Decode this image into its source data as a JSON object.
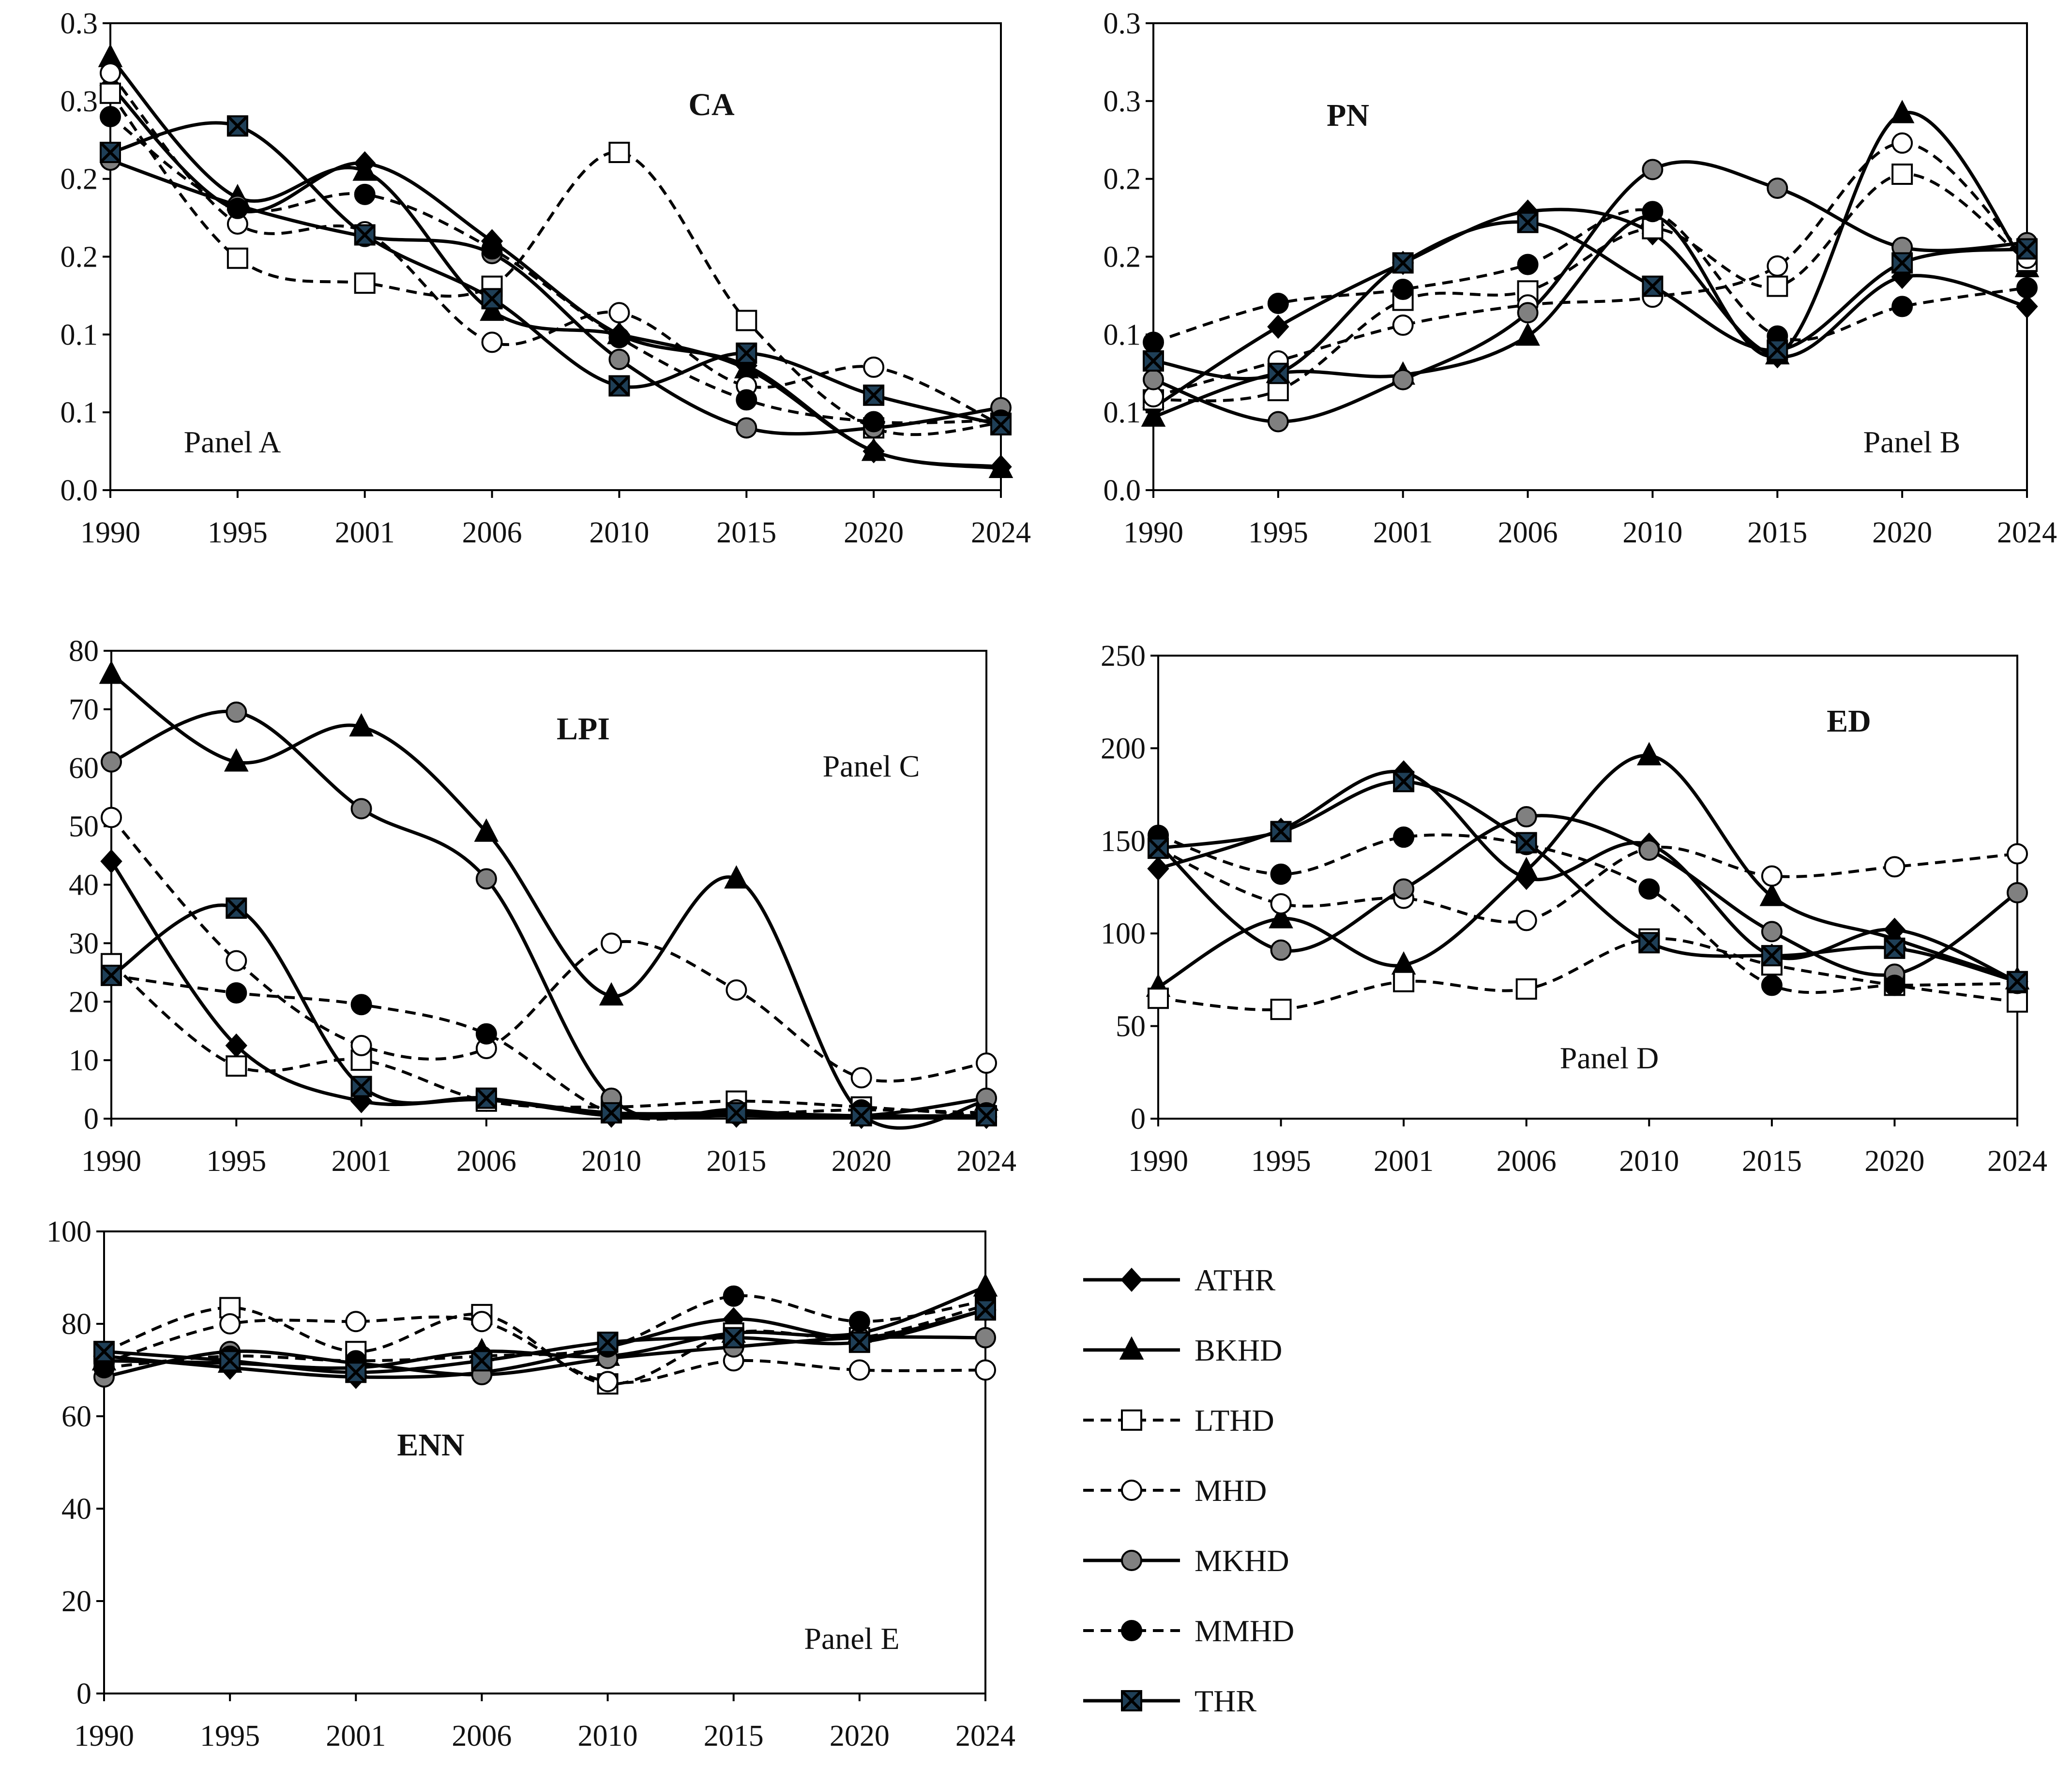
{
  "chart_data": [
    {
      "type": "line",
      "id": "A",
      "title": "CA",
      "panel_label": "Panel A",
      "categories": [
        "1990",
        "1995",
        "2001",
        "2006",
        "2010",
        "2015",
        "2020",
        "2024"
      ],
      "y_ticks": [
        0,
        0.05,
        0.1,
        0.15,
        0.2,
        0.25,
        0.3
      ],
      "y_tick_labels": [
        "0.0",
        "0.1",
        "0.1",
        "0.2",
        "0.2",
        "0.3",
        "0.3"
      ],
      "ylim": [
        0,
        0.3
      ],
      "series": [
        {
          "name": "ATHR",
          "values": [
            0.26,
            0.18,
            0.21,
            0.16,
            0.1,
            0.08,
            0.025,
            0.015
          ]
        },
        {
          "name": "BKHD",
          "values": [
            0.278,
            0.188,
            0.205,
            0.115,
            0.1,
            0.078,
            0.025,
            0.014
          ]
        },
        {
          "name": "LTHD",
          "values": [
            0.255,
            0.149,
            0.133,
            0.131,
            0.217,
            0.109,
            0.04,
            0.043
          ]
        },
        {
          "name": "MHD",
          "values": [
            0.268,
            0.171,
            0.166,
            0.095,
            0.114,
            0.067,
            0.079,
            0.042
          ]
        },
        {
          "name": "MKHD",
          "values": [
            0.212,
            0.183,
            0.163,
            0.152,
            0.084,
            0.04,
            0.04,
            0.053
          ]
        },
        {
          "name": "MMHD",
          "values": [
            0.24,
            0.181,
            0.19,
            0.155,
            0.098,
            0.058,
            0.044,
            0.045
          ]
        },
        {
          "name": "THR",
          "values": [
            0.217,
            0.234,
            0.164,
            0.123,
            0.067,
            0.088,
            0.061,
            0.042
          ]
        }
      ]
    },
    {
      "type": "line",
      "id": "B",
      "title": "PN",
      "panel_label": "Panel B",
      "categories": [
        "1990",
        "1995",
        "2001",
        "2006",
        "2010",
        "2015",
        "2020",
        "2024"
      ],
      "y_ticks": [
        0,
        0.05,
        0.1,
        0.15,
        0.2,
        0.25,
        0.3
      ],
      "y_tick_labels": [
        "0.0",
        "0.1",
        "0.1",
        "0.2",
        "0.2",
        "0.3",
        "0.3"
      ],
      "ylim": [
        0,
        0.3
      ],
      "series": [
        {
          "name": "ATHR",
          "values": [
            0.053,
            0.105,
            0.146,
            0.179,
            0.165,
            0.086,
            0.137,
            0.118
          ]
        },
        {
          "name": "BKHD",
          "values": [
            0.047,
            0.075,
            0.074,
            0.099,
            0.176,
            0.087,
            0.242,
            0.143
          ]
        },
        {
          "name": "LTHD",
          "values": [
            0.058,
            0.064,
            0.122,
            0.128,
            0.168,
            0.131,
            0.203,
            0.147
          ]
        },
        {
          "name": "MHD",
          "values": [
            0.06,
            0.083,
            0.106,
            0.119,
            0.124,
            0.144,
            0.223,
            0.149
          ]
        },
        {
          "name": "MKHD",
          "values": [
            0.071,
            0.044,
            0.071,
            0.114,
            0.206,
            0.194,
            0.156,
            0.159
          ]
        },
        {
          "name": "MMHD",
          "values": [
            0.095,
            0.12,
            0.129,
            0.145,
            0.179,
            0.099,
            0.118,
            0.13
          ]
        },
        {
          "name": "THR",
          "values": [
            0.083,
            0.075,
            0.146,
            0.172,
            0.131,
            0.09,
            0.146,
            0.155
          ]
        }
      ]
    },
    {
      "type": "line",
      "id": "C",
      "title": "LPI",
      "panel_label": "Panel C",
      "categories": [
        "1990",
        "1995",
        "2001",
        "2006",
        "2010",
        "2015",
        "2020",
        "2024"
      ],
      "y_ticks": [
        0,
        10,
        20,
        30,
        40,
        50,
        60,
        70,
        80
      ],
      "y_tick_labels": [
        "0",
        "10",
        "20",
        "30",
        "40",
        "50",
        "60",
        "70",
        "80"
      ],
      "ylim": [
        0,
        80
      ],
      "series": [
        {
          "name": "ATHR",
          "values": [
            44,
            12.5,
            3,
            3.2,
            0.5,
            0.5,
            0.3,
            0.3
          ]
        },
        {
          "name": "BKHD",
          "values": [
            76,
            61,
            67,
            49,
            21,
            41,
            0.8,
            3
          ]
        },
        {
          "name": "LTHD",
          "values": [
            26.5,
            9,
            10,
            3,
            2,
            3,
            2,
            0.5
          ]
        },
        {
          "name": "MHD",
          "values": [
            51.5,
            27,
            12.5,
            12,
            30,
            22,
            7,
            9.5
          ]
        },
        {
          "name": "MKHD",
          "values": [
            61,
            69.5,
            53,
            41,
            3.5,
            1.5,
            0.5,
            3.5
          ]
        },
        {
          "name": "MMHD",
          "values": [
            24.5,
            21.5,
            19.5,
            14.5,
            1,
            0.8,
            1.5,
            1
          ]
        },
        {
          "name": "THR",
          "values": [
            24.5,
            36,
            5.5,
            3.5,
            1,
            1,
            0.5,
            0.5
          ]
        }
      ]
    },
    {
      "type": "line",
      "id": "D",
      "title": "ED",
      "panel_label": "Panel D",
      "categories": [
        "1990",
        "1995",
        "2001",
        "2006",
        "2010",
        "2015",
        "2020",
        "2024"
      ],
      "y_ticks": [
        0,
        50,
        100,
        150,
        200,
        250
      ],
      "y_tick_labels": [
        "0",
        "50",
        "100",
        "150",
        "200",
        "250"
      ],
      "ylim": [
        0,
        250
      ],
      "series": [
        {
          "name": "ATHR",
          "values": [
            135,
            156,
            187,
            130,
            148,
            88,
            102,
            74
          ]
        },
        {
          "name": "BKHD",
          "values": [
            71,
            108,
            83,
            134,
            196,
            120,
            97,
            75
          ]
        },
        {
          "name": "LTHD",
          "values": [
            65,
            59,
            74,
            70,
            97,
            83,
            72,
            63
          ]
        },
        {
          "name": "MHD",
          "values": [
            146,
            116,
            119,
            107,
            146,
            131,
            136,
            143
          ]
        },
        {
          "name": "MKHD",
          "values": [
            148,
            91,
            124,
            163,
            145,
            101,
            78,
            122
          ]
        },
        {
          "name": "MMHD",
          "values": [
            153,
            132,
            152,
            148,
            124,
            72,
            72,
            73
          ]
        },
        {
          "name": "THR",
          "values": [
            146,
            155,
            182,
            149,
            95,
            88,
            92,
            74
          ]
        }
      ]
    },
    {
      "type": "line",
      "id": "E",
      "title": "ENN",
      "panel_label": "Panel E",
      "categories": [
        "1990",
        "1995",
        "2001",
        "2006",
        "2010",
        "2015",
        "2020",
        "2024"
      ],
      "y_ticks": [
        0,
        20,
        40,
        60,
        80,
        100
      ],
      "y_tick_labels": [
        "0",
        "20",
        "40",
        "60",
        "80",
        "100"
      ],
      "ylim": [
        0,
        100
      ],
      "series": [
        {
          "name": "ATHR",
          "values": [
            73,
            70.5,
            68.5,
            69.5,
            75,
            81,
            77,
            83
          ]
        },
        {
          "name": "BKHD",
          "values": [
            72,
            71.5,
            70.5,
            74,
            73,
            78,
            78,
            88
          ]
        },
        {
          "name": "LTHD",
          "values": [
            74,
            83.5,
            74,
            82,
            67,
            78,
            77,
            84
          ]
        },
        {
          "name": "MHD",
          "values": [
            71.5,
            80,
            80.5,
            80.5,
            67.5,
            72,
            70,
            70
          ]
        },
        {
          "name": "MKHD",
          "values": [
            68.5,
            74,
            71.5,
            69,
            72.5,
            75,
            77,
            77
          ]
        },
        {
          "name": "MMHD",
          "values": [
            70.5,
            73,
            72,
            73,
            75,
            86,
            80.5,
            85
          ]
        },
        {
          "name": "THR",
          "values": [
            74,
            72,
            69.5,
            72,
            76,
            77,
            76,
            83
          ]
        }
      ]
    }
  ],
  "legend": [
    {
      "name": "ATHR",
      "line": "solid",
      "marker": "diamond",
      "fill": "#000000"
    },
    {
      "name": "BKHD",
      "line": "solid",
      "marker": "triangle",
      "fill": "#000000"
    },
    {
      "name": "LTHD",
      "line": "dashed",
      "marker": "square",
      "fill": "#ffffff"
    },
    {
      "name": "MHD",
      "line": "dashed",
      "marker": "circle",
      "fill": "#ffffff"
    },
    {
      "name": "MKHD",
      "line": "solid",
      "marker": "circle",
      "fill": "#808080"
    },
    {
      "name": "MMHD",
      "line": "dashed",
      "marker": "circle",
      "fill": "#000000"
    },
    {
      "name": "THR",
      "line": "solid",
      "marker": "xsquare",
      "fill": "#1f3f57"
    }
  ]
}
